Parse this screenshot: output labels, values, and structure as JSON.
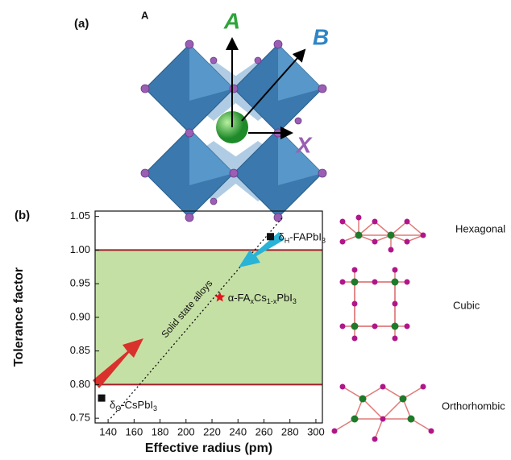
{
  "panel_a": {
    "label": "(a)",
    "corner_label": "A",
    "axis_labels": [
      "A",
      "B",
      "X"
    ]
  },
  "chart_data": {
    "type": "scatter",
    "label": "(b)",
    "xlabel": "Effective radius (pm)",
    "ylabel": "Tolerance factor",
    "xlim": [
      130,
      305
    ],
    "ylim": [
      0.743,
      1.058
    ],
    "xticks": [
      140,
      160,
      180,
      200,
      220,
      240,
      260,
      280,
      300
    ],
    "yticks": [
      0.75,
      {
        "value": 0.8,
        "label": "0.80"
      },
      0.85,
      {
        "value": 0.9,
        "label": "0.90"
      },
      0.95,
      {
        "value": 1,
        "label": "1.00"
      },
      1.05
    ],
    "band": [
      0.8,
      1.0
    ],
    "band_color": "#c5e0a5",
    "band_line_color": "#a01e2a",
    "trend_line": {
      "x": [
        142,
        275
      ],
      "y": [
        0.75,
        1.05
      ]
    },
    "annotation": "Solid state alloys",
    "points": [
      {
        "x": 135,
        "y": 0.78,
        "marker": "square",
        "color": "#111111",
        "label": [
          "δ",
          "O",
          "-CsPbI",
          "3"
        ]
      },
      {
        "x": 265,
        "y": 1.02,
        "marker": "square",
        "color": "#111111",
        "label": [
          "δ",
          "H",
          "-FAPbI",
          "3"
        ]
      },
      {
        "x": 226,
        "y": 0.93,
        "marker": "star",
        "color": "#e0161b",
        "label": [
          "α-FA",
          "x",
          "Cs",
          "1-x",
          "PbI",
          "3"
        ]
      }
    ]
  },
  "structures": [
    "Hexagonal",
    "Cubic",
    "Orthorhombic"
  ]
}
